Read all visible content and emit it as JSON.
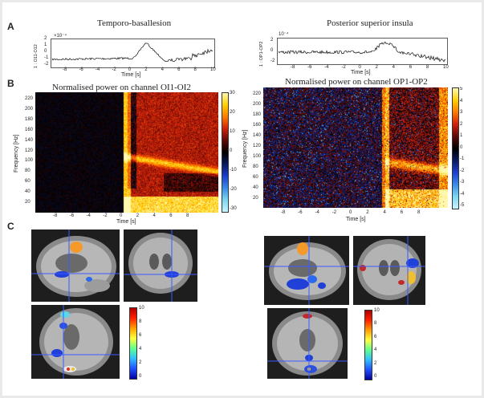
{
  "panels": {
    "A": "A",
    "B": "B",
    "C": "C"
  },
  "section_a": {
    "left": {
      "title": "Temporo-basallesion",
      "ylabel": "1 : O11-O12",
      "scale": "×10⁻⁴",
      "xlabel": "Time [s]",
      "xticks": [
        "-8",
        "-6",
        "-4",
        "-2",
        "0",
        "2",
        "4",
        "6",
        "8",
        "10"
      ],
      "yticks": [
        "2",
        "1",
        "0",
        "-1",
        "-2"
      ]
    },
    "right": {
      "title": "Posterior superior insula",
      "ylabel": "1 : OP1-OP2",
      "scale": "10⁻⁴",
      "xlabel": "Time [s]",
      "xticks": [
        "-8",
        "-6",
        "-4",
        "-2",
        "0",
        "2",
        "4",
        "6",
        "8",
        "10"
      ],
      "yticks": [
        "2",
        "0",
        "-2"
      ]
    }
  },
  "section_b": {
    "left": {
      "title": "Normalised power on channel OI1-OI2",
      "ylabel": "Frequency [Hz]",
      "xlabel": "Time [s]",
      "yticks": [
        "220",
        "200",
        "180",
        "160",
        "140",
        "120",
        "100",
        "80",
        "60",
        "40",
        "20"
      ],
      "xticks": [
        "-8",
        "-6",
        "-4",
        "-2",
        "0",
        "2",
        "4",
        "6",
        "8"
      ],
      "cbar_ticks": [
        "30",
        "20",
        "10",
        "0",
        "-10",
        "-20",
        "-30"
      ]
    },
    "right": {
      "title": "Normalised power on channel OP1-OP2",
      "ylabel": "Frequency [Hz]",
      "xlabel": "Time [s]",
      "yticks": [
        "220",
        "200",
        "180",
        "160",
        "140",
        "120",
        "100",
        "80",
        "60",
        "40",
        "20"
      ],
      "xticks": [
        "-8",
        "-6",
        "-4",
        "-2",
        "0",
        "2",
        "4",
        "6",
        "8"
      ],
      "cbar_ticks": [
        "5",
        "4",
        "3",
        "2",
        "1",
        "0",
        "-1",
        "-2",
        "-3",
        "-4",
        "-5"
      ]
    }
  },
  "section_c": {
    "left_cbar_ticks": [
      "10",
      "8",
      "6",
      "4",
      "2",
      "0"
    ],
    "right_cbar_ticks": [
      "10",
      "8",
      "6",
      "4",
      "2",
      "0"
    ]
  },
  "colors": {
    "heat_hot": "#ffd24a",
    "heat_red": "#e0341a",
    "cold_blue": "#2a4bd8",
    "crosshair": "#3a5bff"
  }
}
